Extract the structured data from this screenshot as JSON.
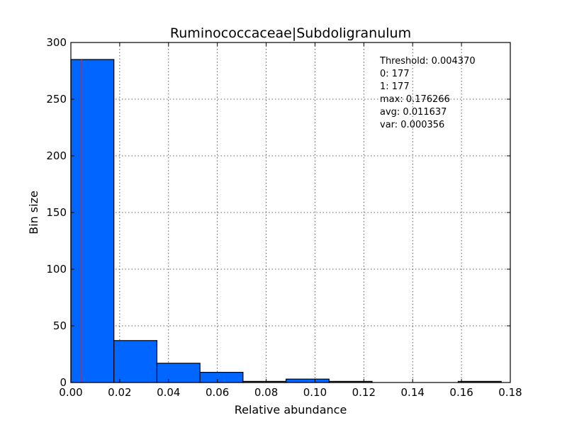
{
  "chart_data": {
    "type": "bar",
    "title": "Ruminococcaceae|Subdoligranulum",
    "xlabel": "Relative abundance",
    "ylabel": "Bin size",
    "xlim": [
      0.0,
      0.18
    ],
    "ylim": [
      0,
      300
    ],
    "xticks": [
      "0.00",
      "0.02",
      "0.04",
      "0.06",
      "0.08",
      "0.10",
      "0.12",
      "0.14",
      "0.16",
      "0.18"
    ],
    "yticks": [
      "0",
      "50",
      "100",
      "150",
      "200",
      "250",
      "300"
    ],
    "grid": true,
    "bar_color": "#0066ff",
    "threshold_color": "#d62728",
    "threshold_x": 0.00437,
    "bins": [
      {
        "x0": 0.0,
        "x1": 0.017627,
        "value": 285
      },
      {
        "x0": 0.017627,
        "x1": 0.035253,
        "value": 37
      },
      {
        "x0": 0.035253,
        "x1": 0.05288,
        "value": 17
      },
      {
        "x0": 0.05288,
        "x1": 0.070506,
        "value": 9
      },
      {
        "x0": 0.070506,
        "x1": 0.088133,
        "value": 1
      },
      {
        "x0": 0.088133,
        "x1": 0.10576,
        "value": 3
      },
      {
        "x0": 0.10576,
        "x1": 0.123386,
        "value": 1
      },
      {
        "x0": 0.123386,
        "x1": 0.141013,
        "value": 0
      },
      {
        "x0": 0.141013,
        "x1": 0.158639,
        "value": 0
      },
      {
        "x0": 0.158639,
        "x1": 0.176266,
        "value": 1
      }
    ],
    "annotations": [
      "Threshold: 0.004370",
      "0: 177",
      "1: 177",
      "max: 0.176266",
      "avg: 0.011637",
      "var: 0.000356"
    ]
  }
}
